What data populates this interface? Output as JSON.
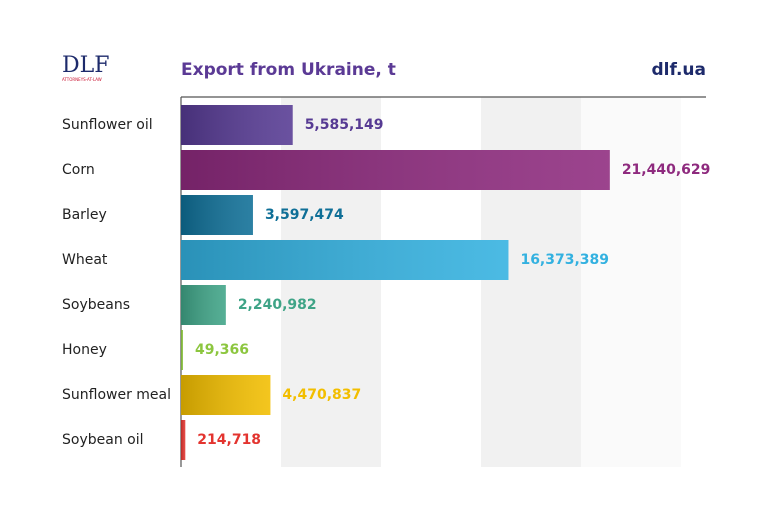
{
  "brand": {
    "logo": "DLF",
    "tagline": "ATTORNEYS-AT-LAW",
    "site": "dlf.ua"
  },
  "chart_data": {
    "type": "bar",
    "orientation": "horizontal",
    "title": "Export from Ukraine, t",
    "categories": [
      "Sunflower oil",
      "Corn",
      "Barley",
      "Wheat",
      "Soybeans",
      "Honey",
      "Sunflower meal",
      "Soybean oil"
    ],
    "values": [
      5585149,
      21440629,
      3597474,
      16373389,
      2240982,
      49366,
      4470837,
      214718
    ],
    "value_labels": [
      "5,585,149",
      "21,440,629",
      "3,597,474",
      "16,373,389",
      "2,240,982",
      "49,366",
      "4,470,837",
      "214,718"
    ],
    "colors": [
      "#563a93",
      "#8e2a7e",
      "#0f6f97",
      "#33b1e0",
      "#3fa487",
      "#8cc63f",
      "#f2be00",
      "#e3342f"
    ],
    "xlim": [
      0,
      26250000
    ]
  }
}
